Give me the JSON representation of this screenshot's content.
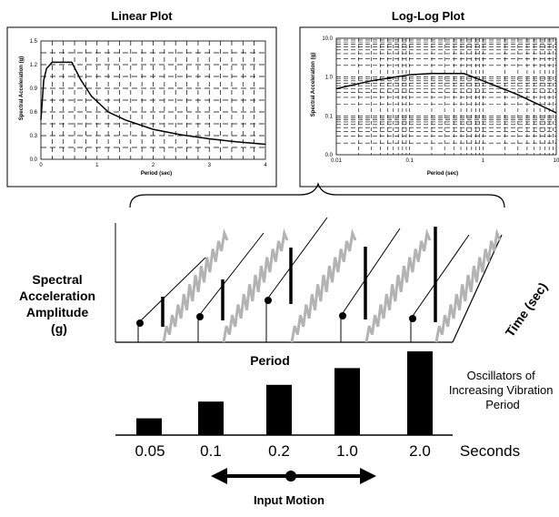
{
  "linear_plot": {
    "title": "Linear Plot",
    "xlabel": "Period (sec)",
    "ylabel": "Spectral Acceleration (g)",
    "xticks": [
      "0",
      "1",
      "2",
      "3",
      "4"
    ],
    "yticks": [
      "0.0",
      "0.3",
      "0.6",
      "0.9",
      "1.2",
      "1.5"
    ]
  },
  "loglog_plot": {
    "title": "Log-Log Plot",
    "xlabel": "Period (sec)",
    "ylabel": "Spectral Acceleration (g)",
    "xticks": [
      "0.01",
      "0.1",
      "1",
      "10"
    ],
    "yticks": [
      "0.0",
      "0.1",
      "1.0",
      "10.0"
    ]
  },
  "center": {
    "spectral_label": [
      "Spectral",
      "Acceleration",
      "Amplitude",
      "(g)"
    ],
    "time_label": "Time (sec)",
    "period_label": "Period",
    "periods": [
      "0.05",
      "0.1",
      "0.2",
      "1.0",
      "2.0"
    ],
    "seconds_label": "Seconds",
    "oscillators_label": [
      "Oscillators  of",
      "Increasing Vibration",
      "Period"
    ],
    "input_motion_label": "Input Motion"
  },
  "chart_data": [
    {
      "type": "line",
      "title": "Linear Plot",
      "xlabel": "Period (sec)",
      "ylabel": "Spectral Acceleration (g)",
      "xlim": [
        0,
        4
      ],
      "ylim": [
        0,
        1.5
      ],
      "grid": true,
      "x": [
        0,
        0.05,
        0.1,
        0.2,
        0.55,
        0.7,
        0.9,
        1.2,
        1.5,
        2.0,
        2.5,
        3.0,
        3.5,
        4.0
      ],
      "y": [
        0.5,
        1.0,
        1.15,
        1.23,
        1.23,
        1.02,
        0.8,
        0.6,
        0.5,
        0.38,
        0.31,
        0.26,
        0.22,
        0.19
      ]
    },
    {
      "type": "line",
      "title": "Log-Log Plot",
      "xlabel": "Period (sec)",
      "ylabel": "Spectral Acceleration (g)",
      "xscale": "log",
      "yscale": "log",
      "xlim": [
        0.01,
        10
      ],
      "grid": true,
      "x": [
        0.01,
        0.03,
        0.1,
        0.2,
        0.55,
        1,
        3,
        10
      ],
      "y": [
        0.5,
        0.8,
        1.15,
        1.23,
        1.23,
        0.8,
        0.35,
        0.12
      ]
    },
    {
      "type": "bar",
      "title": "",
      "categories": [
        "0.05",
        "0.1",
        "0.2",
        "1.0",
        "2.0"
      ],
      "values": [
        1,
        2,
        3,
        4,
        5
      ]
    }
  ]
}
